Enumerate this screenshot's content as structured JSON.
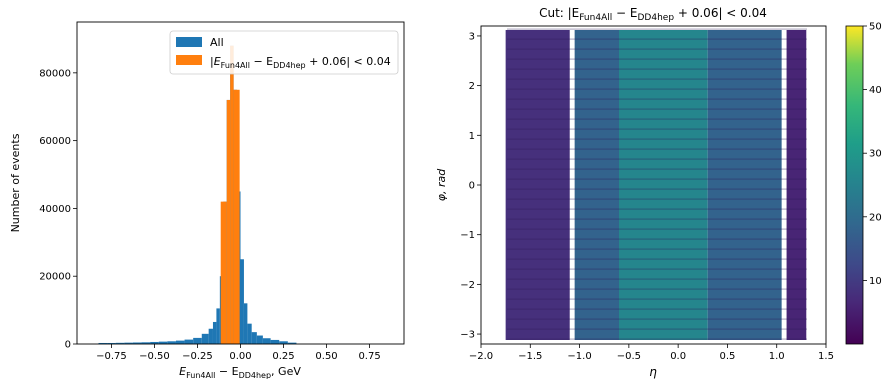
{
  "chart_data": [
    {
      "type": "bar",
      "xlabel_main": "E",
      "xlabel_sub1": "Fun4All",
      "xlabel_mid": " − E",
      "xlabel_sub2": "DD4hep",
      "xlabel_tail": ", GeV",
      "ylabel": "Number of events",
      "xlim": [
        -0.95,
        0.95
      ],
      "ylim": [
        0,
        95000
      ],
      "xticks": [
        "−0.75",
        "−0.50",
        "−0.25",
        "0.00",
        "0.25",
        "0.50",
        "0.75"
      ],
      "xtick_values": [
        -0.75,
        -0.5,
        -0.25,
        0.0,
        0.25,
        0.5,
        0.75
      ],
      "yticks": [
        "0",
        "20000",
        "40000",
        "60000",
        "80000"
      ],
      "ytick_values": [
        0,
        20000,
        40000,
        60000,
        80000
      ],
      "legend_position": "top-right",
      "legend": {
        "all": "All",
        "cut_prefix": "|E",
        "cut_sub1": "Fun4All",
        "cut_mid": " − E",
        "cut_sub2": "DD4hep",
        "cut_tail": " + 0.06| < 0.04"
      },
      "series": [
        {
          "name": "All",
          "color": "#1f77b4",
          "x": [
            -0.8,
            -0.75,
            -0.7,
            -0.65,
            -0.6,
            -0.55,
            -0.5,
            -0.45,
            -0.4,
            -0.35,
            -0.3,
            -0.25,
            -0.2,
            -0.17,
            -0.15,
            -0.13,
            -0.11,
            -0.09,
            -0.07,
            -0.05,
            -0.03,
            -0.01,
            0.01,
            0.03,
            0.05,
            0.08,
            0.11,
            0.15,
            0.2,
            0.25,
            0.3
          ],
          "values": [
            300,
            300,
            350,
            400,
            450,
            500,
            600,
            700,
            800,
            1000,
            1300,
            1800,
            3000,
            4500,
            6500,
            10500,
            20000,
            42000,
            72000,
            88000,
            75000,
            45000,
            25000,
            12000,
            6000,
            3500,
            2500,
            1700,
            1200,
            800,
            400
          ]
        },
        {
          "name": "|E_Fun4All − E_DD4hep + 0.06| < 0.04",
          "color": "#ff7f0e",
          "x": [
            -0.09,
            -0.07,
            -0.05,
            -0.03
          ],
          "values": [
            42000,
            72000,
            88000,
            75000
          ]
        }
      ]
    },
    {
      "type": "heatmap",
      "title_prefix": "Cut: |E",
      "title_sub1": "Fun4All",
      "title_mid": " − E",
      "title_sub2": "DD4hep",
      "title_tail": " + 0.06| < 0.04",
      "xlabel": "η",
      "ylabel": "φ, rad",
      "xlim": [
        -2.0,
        1.5
      ],
      "ylim": [
        -3.2,
        3.2
      ],
      "xticks": [
        "−2.0",
        "−1.5",
        "−1.0",
        "−0.5",
        "0.0",
        "0.5",
        "1.0",
        "1.5"
      ],
      "xtick_values": [
        -2.0,
        -1.5,
        -1.0,
        -0.5,
        0.0,
        0.5,
        1.0,
        1.5
      ],
      "yticks": [
        "−3",
        "−2",
        "−1",
        "0",
        "1",
        "2",
        "3"
      ],
      "ytick_values": [
        -3,
        -2,
        -1,
        0,
        1,
        2,
        3
      ],
      "colorbar": {
        "min": 0,
        "max": 50,
        "ticks": [
          "10",
          "20",
          "30",
          "40",
          "50"
        ],
        "tick_values": [
          10,
          20,
          30,
          40,
          50
        ],
        "colormap": "viridis"
      },
      "eta_bands": [
        {
          "eta_min": -1.75,
          "eta_max": -1.1,
          "level": 8
        },
        {
          "eta_min": -1.05,
          "eta_max": -0.6,
          "level": 18
        },
        {
          "eta_min": -0.6,
          "eta_max": 0.3,
          "level": 26
        },
        {
          "eta_min": 0.3,
          "eta_max": 1.05,
          "level": 18
        },
        {
          "eta_min": 1.1,
          "eta_max": 1.3,
          "level": 6
        }
      ]
    }
  ]
}
